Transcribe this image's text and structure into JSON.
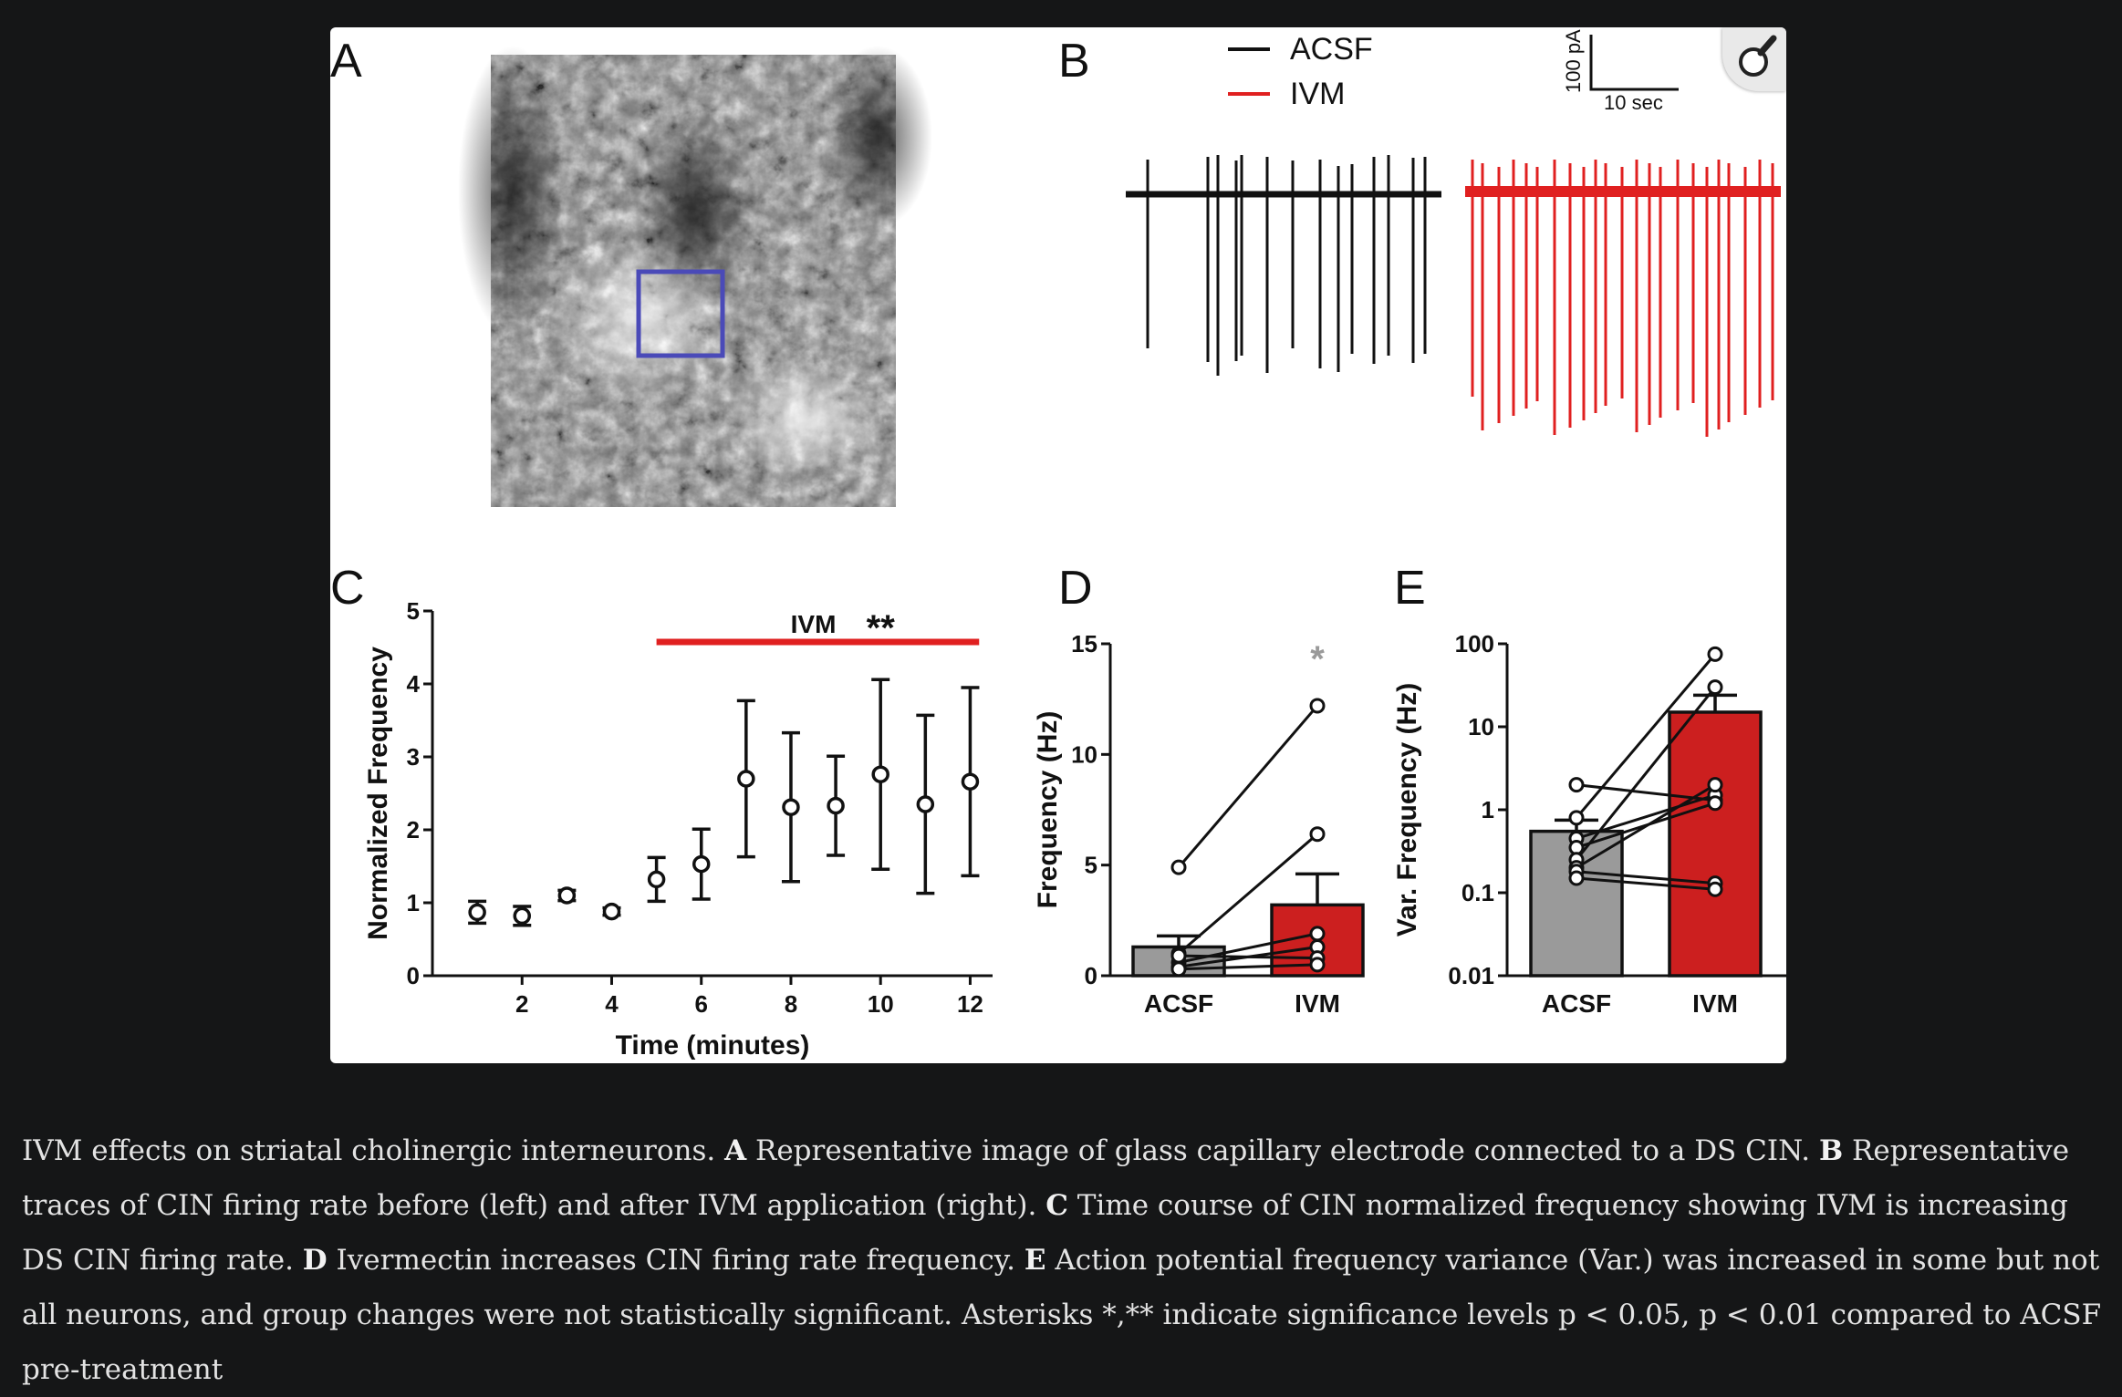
{
  "figure": {
    "panel_labels": [
      "A",
      "B",
      "C",
      "D",
      "E"
    ],
    "zoom_button": "magnifier-icon",
    "panel_b": {
      "legend": [
        {
          "label": "ACSF",
          "color": "#111111"
        },
        {
          "label": "IVM",
          "color": "#e02020"
        }
      ],
      "scale_bar": {
        "vertical": "100 pA",
        "horizontal": "10 sec"
      }
    }
  },
  "caption": {
    "intro": "IVM effects on striatal cholinergic interneurons.",
    "parts": [
      {
        "label": "A",
        "text": "Representative image of glass capillary electrode connected to a DS CIN."
      },
      {
        "label": "B",
        "text": "Representative traces of CIN firing rate before (left) and after IVM application (right)."
      },
      {
        "label": "C",
        "text": "Time course of CIN normalized frequency showing IVM is increasing DS CIN firing rate."
      },
      {
        "label": "D",
        "text": "Ivermectin increases CIN firing rate frequency."
      },
      {
        "label": "E",
        "text": "Action potential frequency variance (Var.) was increased in some but not all neurons, and group changes were not statistically significant. Asterisks *,** indicate significance levels p < 0.05, p < 0.01 compared to ACSF pre-treatment"
      }
    ]
  },
  "chart_data": [
    {
      "panel": "C",
      "type": "scatter",
      "xlabel": "Time (minutes)",
      "ylabel": "Normalized Frequency",
      "xlim": [
        0,
        12.5
      ],
      "ylim": [
        0,
        5
      ],
      "xticks": [
        2,
        4,
        6,
        8,
        10,
        12
      ],
      "yticks": [
        0,
        1,
        2,
        3,
        4,
        5
      ],
      "points": [
        {
          "x": 1,
          "y": 0.87,
          "err": 0.15
        },
        {
          "x": 2,
          "y": 0.82,
          "err": 0.13
        },
        {
          "x": 3,
          "y": 1.1,
          "err": 0.07
        },
        {
          "x": 4,
          "y": 0.88,
          "err": 0.05
        },
        {
          "x": 5,
          "y": 1.32,
          "err": 0.3
        },
        {
          "x": 6,
          "y": 1.53,
          "err": 0.48
        },
        {
          "x": 7,
          "y": 2.7,
          "err": 1.07
        },
        {
          "x": 8,
          "y": 2.31,
          "err": 1.02
        },
        {
          "x": 9,
          "y": 2.33,
          "err": 0.68
        },
        {
          "x": 10,
          "y": 2.76,
          "err": 1.3
        },
        {
          "x": 11,
          "y": 2.35,
          "err": 1.22
        },
        {
          "x": 12,
          "y": 2.66,
          "err": 1.29
        }
      ],
      "annotation": {
        "label": "IVM",
        "significance": "**",
        "x_range": [
          5,
          12.2
        ],
        "color": "#e02020"
      }
    },
    {
      "panel": "D",
      "type": "bar",
      "ylabel": "Frequency (Hz)",
      "categories": [
        "ACSF",
        "IVM"
      ],
      "values": [
        1.3,
        3.2
      ],
      "errors": [
        0.5,
        1.4
      ],
      "colors": [
        "#9a9a9a",
        "#cc1f1f"
      ],
      "ylim": [
        0,
        15
      ],
      "yticks": [
        0,
        5,
        10,
        15
      ],
      "significance": "*",
      "paired": [
        [
          4.9,
          12.2
        ],
        [
          1.0,
          6.4
        ],
        [
          0.6,
          1.9
        ],
        [
          0.4,
          1.3
        ],
        [
          0.9,
          0.8
        ],
        [
          0.3,
          0.5
        ]
      ]
    },
    {
      "panel": "E",
      "type": "bar",
      "ylabel": "Var. Frequency (Hz)",
      "scale": "log",
      "categories": [
        "ACSF",
        "IVM"
      ],
      "values": [
        0.55,
        15
      ],
      "errors": [
        0.2,
        9
      ],
      "colors": [
        "#9a9a9a",
        "#cc1f1f"
      ],
      "ylim": [
        0.01,
        100
      ],
      "yticks": [
        "0.01",
        "0.1",
        "1",
        "10",
        "100"
      ],
      "paired": [
        [
          2.0,
          1.3
        ],
        [
          0.8,
          75
        ],
        [
          0.45,
          1.5
        ],
        [
          0.35,
          1.2
        ],
        [
          0.25,
          30
        ],
        [
          0.2,
          2.0
        ],
        [
          0.18,
          0.13
        ],
        [
          0.15,
          0.11
        ]
      ]
    }
  ]
}
